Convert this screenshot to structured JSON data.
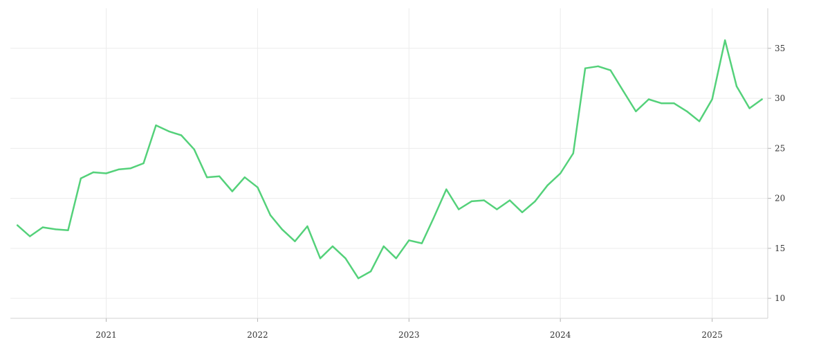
{
  "chart_data": {
    "type": "line",
    "title": "",
    "xlabel": "",
    "ylabel": "",
    "x_ticks": [
      "2021",
      "2022",
      "2023",
      "2024",
      "2025"
    ],
    "y_ticks": [
      10,
      15,
      20,
      25,
      30,
      35
    ],
    "xlim": [
      "2020-05-15",
      "2025-05-15"
    ],
    "ylim": [
      8,
      39
    ],
    "grid": true,
    "y_axis_position": "right",
    "series": [
      {
        "color": "#54d17a",
        "points": [
          [
            "2020-06-01",
            17.3
          ],
          [
            "2020-07-01",
            16.2
          ],
          [
            "2020-08-01",
            17.1
          ],
          [
            "2020-09-01",
            16.9
          ],
          [
            "2020-10-01",
            16.8
          ],
          [
            "2020-11-01",
            22.0
          ],
          [
            "2020-12-01",
            22.6
          ],
          [
            "2021-01-01",
            22.5
          ],
          [
            "2021-02-01",
            22.9
          ],
          [
            "2021-03-01",
            23.0
          ],
          [
            "2021-04-01",
            23.5
          ],
          [
            "2021-05-01",
            27.3
          ],
          [
            "2021-06-01",
            26.7
          ],
          [
            "2021-07-01",
            26.3
          ],
          [
            "2021-08-01",
            24.9
          ],
          [
            "2021-09-01",
            22.1
          ],
          [
            "2021-10-01",
            22.2
          ],
          [
            "2021-11-01",
            20.7
          ],
          [
            "2021-12-01",
            22.1
          ],
          [
            "2022-01-01",
            21.1
          ],
          [
            "2022-02-01",
            18.3
          ],
          [
            "2022-03-01",
            16.9
          ],
          [
            "2022-04-01",
            15.7
          ],
          [
            "2022-05-01",
            17.2
          ],
          [
            "2022-06-01",
            14.0
          ],
          [
            "2022-07-01",
            15.2
          ],
          [
            "2022-08-01",
            14.0
          ],
          [
            "2022-09-01",
            12.0
          ],
          [
            "2022-10-01",
            12.7
          ],
          [
            "2022-11-01",
            15.2
          ],
          [
            "2022-12-01",
            14.0
          ],
          [
            "2023-01-01",
            15.8
          ],
          [
            "2023-02-01",
            15.5
          ],
          [
            "2023-03-01",
            18.0
          ],
          [
            "2023-04-01",
            20.9
          ],
          [
            "2023-05-01",
            18.9
          ],
          [
            "2023-06-01",
            19.7
          ],
          [
            "2023-07-01",
            19.8
          ],
          [
            "2023-08-01",
            18.9
          ],
          [
            "2023-09-01",
            19.8
          ],
          [
            "2023-10-01",
            18.6
          ],
          [
            "2023-11-01",
            19.7
          ],
          [
            "2023-12-01",
            21.3
          ],
          [
            "2024-01-01",
            22.5
          ],
          [
            "2024-02-01",
            24.5
          ],
          [
            "2024-03-01",
            33.0
          ],
          [
            "2024-04-01",
            33.2
          ],
          [
            "2024-05-01",
            32.8
          ],
          [
            "2024-06-01",
            30.7
          ],
          [
            "2024-07-01",
            28.7
          ],
          [
            "2024-08-01",
            29.9
          ],
          [
            "2024-09-01",
            29.5
          ],
          [
            "2024-10-01",
            29.5
          ],
          [
            "2024-11-01",
            28.7
          ],
          [
            "2024-12-01",
            27.7
          ],
          [
            "2025-01-01",
            29.9
          ],
          [
            "2025-02-01",
            35.8
          ],
          [
            "2025-03-01",
            31.2
          ],
          [
            "2025-04-01",
            29.0
          ],
          [
            "2025-05-01",
            29.9
          ]
        ]
      }
    ]
  }
}
